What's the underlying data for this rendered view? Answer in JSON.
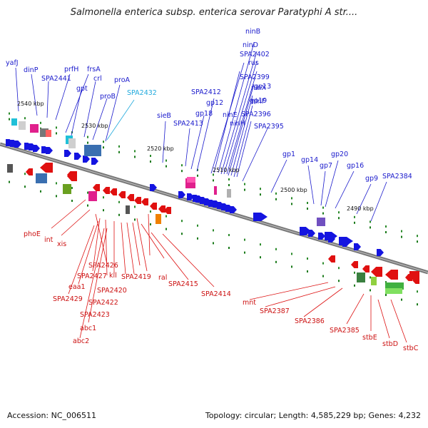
{
  "title": "Salmonella enterica subsp. enterica serovar Paratyphi A str....",
  "footer": {
    "accession": "Accession: NC_006511",
    "summary": "Topology: circular; Length: 4,585,229 bp; Genes: 4,232"
  },
  "colors": {
    "forward_label": "#1a1acc",
    "reverse_label": "#cc1111",
    "highlight_label": "#22aadd"
  },
  "scale_labels": [
    "2540 kbp",
    "2530 kbp",
    "2520 kbp",
    "2510 kbp",
    "2500 kbp",
    "2490 kbp"
  ],
  "forward_labels": [
    "yafJ",
    "dinP",
    "SPA2441",
    "prfH",
    "frsA",
    "gpt",
    "crl",
    "proB",
    "proA",
    "SPA2432",
    "sieB",
    "SPA2413",
    "gp18",
    "SPA2412",
    "gp12",
    "ninB",
    "ninD",
    "SPA2402",
    "rus",
    "SPA2399",
    "ninX",
    "gp13",
    "ninF",
    "gp19",
    "ninE",
    "SPA2396",
    "ninH",
    "SPA2395",
    "gp1",
    "gp14",
    "gp7",
    "gp20",
    "gp16",
    "gp9",
    "SPA2384"
  ],
  "reverse_labels": [
    "phoE",
    "int",
    "xis",
    "SPA2426",
    "SPA2427",
    "kil",
    "SPA2419",
    "eaa1",
    "SPA2420",
    "SPA2429",
    "SPA2422",
    "SPA2423",
    "abc1",
    "abc2",
    "ral",
    "SPA2415",
    "SPA2414",
    "mnt",
    "SPA2387",
    "SPA2386",
    "SPA2385",
    "stbE",
    "stbD",
    "stbC"
  ]
}
